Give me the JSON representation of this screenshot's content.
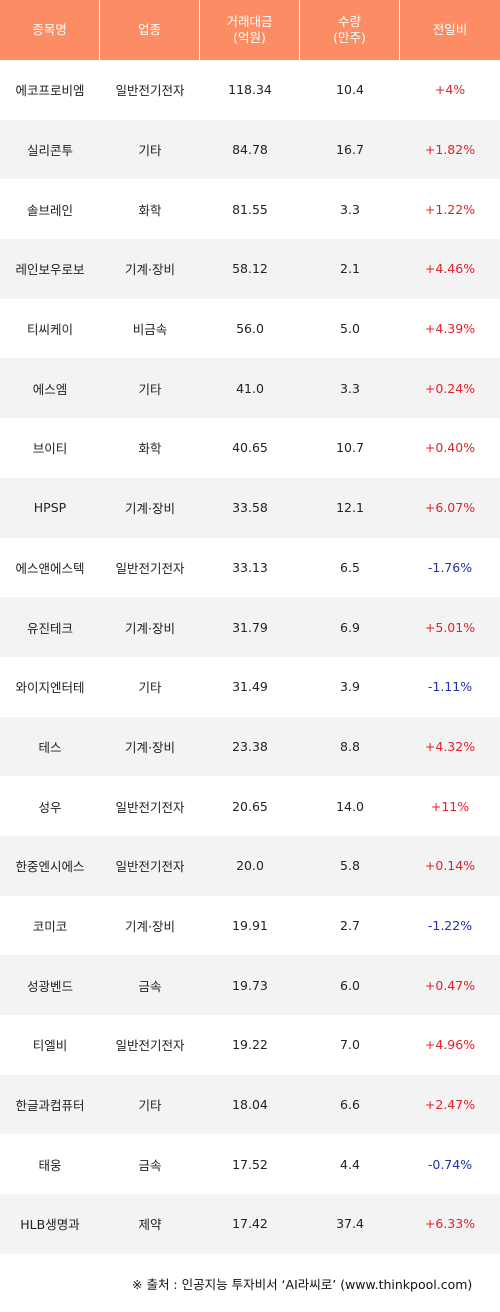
{
  "header": {
    "name": "종목명",
    "sector": "업종",
    "amount": "거래대금\n(억원)",
    "amount_l1": "거래대금",
    "amount_l2": "(억원)",
    "volume_l1": "수량",
    "volume_l2": "(만주)",
    "change": "전일비"
  },
  "rows": [
    {
      "name": "에코프로비엠",
      "sector": "일반전기전자",
      "amount": "118.34",
      "volume": "10.4",
      "change": "+4%",
      "dir": "pos"
    },
    {
      "name": "실리콘투",
      "sector": "기타",
      "amount": "84.78",
      "volume": "16.7",
      "change": "+1.82%",
      "dir": "pos"
    },
    {
      "name": "솔브레인",
      "sector": "화학",
      "amount": "81.55",
      "volume": "3.3",
      "change": "+1.22%",
      "dir": "pos"
    },
    {
      "name": "레인보우로보",
      "sector": "기계·장비",
      "amount": "58.12",
      "volume": "2.1",
      "change": "+4.46%",
      "dir": "pos"
    },
    {
      "name": "티씨케이",
      "sector": "비금속",
      "amount": "56.0",
      "volume": "5.0",
      "change": "+4.39%",
      "dir": "pos"
    },
    {
      "name": "에스엠",
      "sector": "기타",
      "amount": "41.0",
      "volume": "3.3",
      "change": "+0.24%",
      "dir": "pos"
    },
    {
      "name": "브이티",
      "sector": "화학",
      "amount": "40.65",
      "volume": "10.7",
      "change": "+0.40%",
      "dir": "pos"
    },
    {
      "name": "HPSP",
      "sector": "기계·장비",
      "amount": "33.58",
      "volume": "12.1",
      "change": "+6.07%",
      "dir": "pos"
    },
    {
      "name": "에스앤에스텍",
      "sector": "일반전기전자",
      "amount": "33.13",
      "volume": "6.5",
      "change": "-1.76%",
      "dir": "neg"
    },
    {
      "name": "유진테크",
      "sector": "기계·장비",
      "amount": "31.79",
      "volume": "6.9",
      "change": "+5.01%",
      "dir": "pos"
    },
    {
      "name": "와이지엔터테",
      "sector": "기타",
      "amount": "31.49",
      "volume": "3.9",
      "change": "-1.11%",
      "dir": "neg"
    },
    {
      "name": "테스",
      "sector": "기계·장비",
      "amount": "23.38",
      "volume": "8.8",
      "change": "+4.32%",
      "dir": "pos"
    },
    {
      "name": "성우",
      "sector": "일반전기전자",
      "amount": "20.65",
      "volume": "14.0",
      "change": "+11%",
      "dir": "pos"
    },
    {
      "name": "한중엔시에스",
      "sector": "일반전기전자",
      "amount": "20.0",
      "volume": "5.8",
      "change": "+0.14%",
      "dir": "pos"
    },
    {
      "name": "코미코",
      "sector": "기계·장비",
      "amount": "19.91",
      "volume": "2.7",
      "change": "-1.22%",
      "dir": "neg"
    },
    {
      "name": "성광벤드",
      "sector": "금속",
      "amount": "19.73",
      "volume": "6.0",
      "change": "+0.47%",
      "dir": "pos"
    },
    {
      "name": "티엘비",
      "sector": "일반전기전자",
      "amount": "19.22",
      "volume": "7.0",
      "change": "+4.96%",
      "dir": "pos"
    },
    {
      "name": "한글과컴퓨터",
      "sector": "기타",
      "amount": "18.04",
      "volume": "6.6",
      "change": "+2.47%",
      "dir": "pos"
    },
    {
      "name": "태웅",
      "sector": "금속",
      "amount": "17.52",
      "volume": "4.4",
      "change": "-0.74%",
      "dir": "neg"
    },
    {
      "name": "HLB생명과",
      "sector": "제약",
      "amount": "17.42",
      "volume": "37.4",
      "change": "+6.33%",
      "dir": "pos"
    }
  ],
  "source": "※ 출처 : 인공지능 투자비서 ‘AI라씨로’ (www.thinkpool.com)",
  "colors": {
    "header_bg": "#fb8c63",
    "positive": "#e4202c",
    "negative": "#2330a8",
    "stripe": "#f3f3f3"
  }
}
